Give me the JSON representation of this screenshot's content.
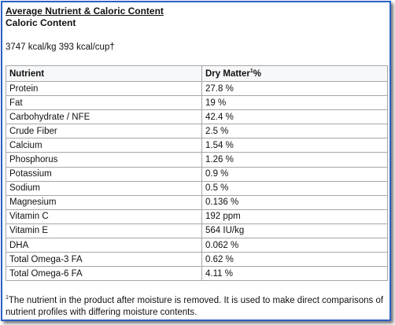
{
  "heading": {
    "title": "Average Nutrient & Caloric Content",
    "subtitle": "Caloric Content"
  },
  "caloric": {
    "values": "3747 kcal/kg 393 kcal/cup†"
  },
  "table": {
    "headers": {
      "nutrient": "Nutrient",
      "dry_matter": "Dry Matter",
      "dry_matter_sup": "1",
      "dry_matter_suffix": "%"
    },
    "rows": [
      {
        "nutrient": "Protein",
        "value": "27.8 %"
      },
      {
        "nutrient": "Fat",
        "value": "19 %"
      },
      {
        "nutrient": "Carbohydrate / NFE",
        "value": "42.4 %"
      },
      {
        "nutrient": "Crude Fiber",
        "value": "2.5 %"
      },
      {
        "nutrient": "Calcium",
        "value": "1.54 %"
      },
      {
        "nutrient": "Phosphorus",
        "value": "1.26 %"
      },
      {
        "nutrient": "Potassium",
        "value": "0.9 %"
      },
      {
        "nutrient": "Sodium",
        "value": "0.5 %"
      },
      {
        "nutrient": "Magnesium",
        "value": "0.136 %"
      },
      {
        "nutrient": "Vitamin C",
        "value": "192 ppm"
      },
      {
        "nutrient": "Vitamin E",
        "value": "564 IU/kg"
      },
      {
        "nutrient": "DHA",
        "value": "0.062 %"
      },
      {
        "nutrient": "Total Omega-3 FA",
        "value": "0.62 %"
      },
      {
        "nutrient": "Total Omega-6 FA",
        "value": "4.11 %"
      }
    ]
  },
  "footnote": {
    "marker": "1",
    "text": "The nutrient in the product after moisture is removed. It is used to make direct comparisons of nutrient profiles with differing moisture contents."
  }
}
